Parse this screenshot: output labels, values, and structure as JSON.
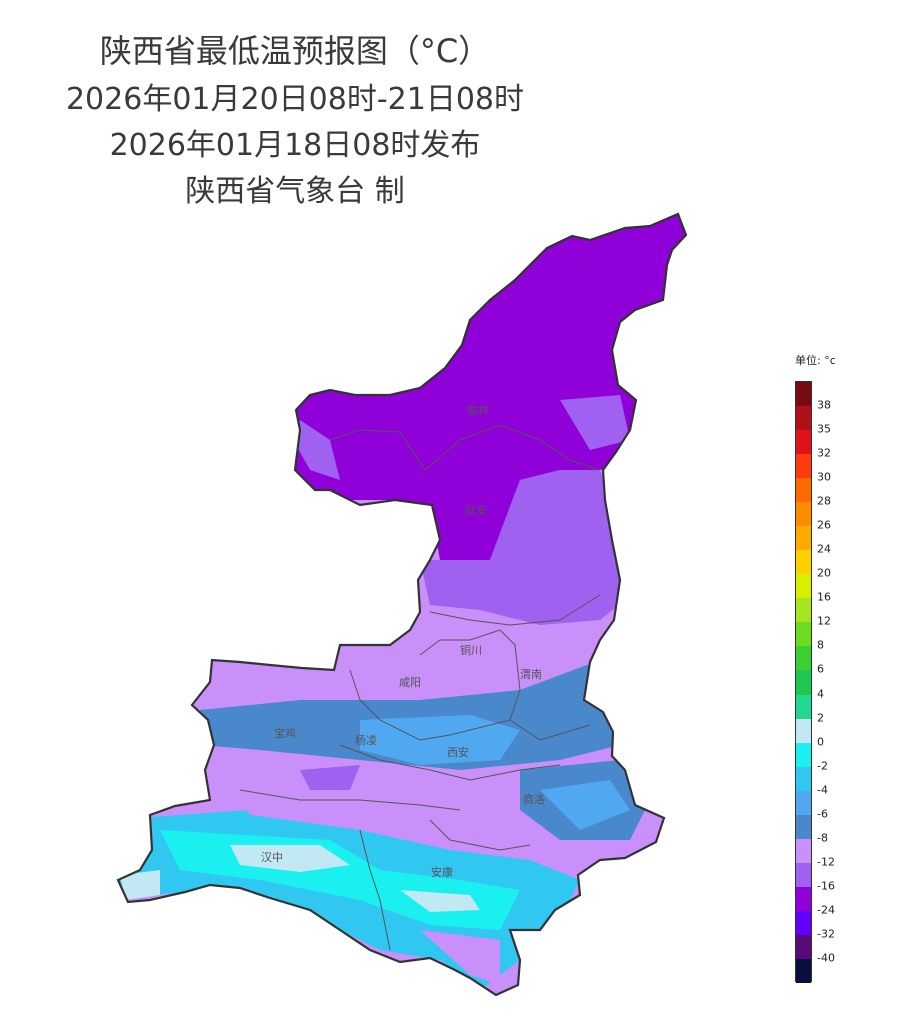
{
  "header": {
    "title": "陕西省最低温预报图（°C）",
    "period": "2026年01月20日08时-21日08时",
    "issued": "2026年01月18日08时发布",
    "issuer": "陕西省气象台 制"
  },
  "map": {
    "region": "陕西省",
    "cities": [
      {
        "id": "yulin",
        "name": "榆林"
      },
      {
        "id": "yanan",
        "name": "延安"
      },
      {
        "id": "tongchuan",
        "name": "铜川"
      },
      {
        "id": "xianyang",
        "name": "咸阳"
      },
      {
        "id": "weinan",
        "name": "渭南"
      },
      {
        "id": "baoji",
        "name": "宝鸡"
      },
      {
        "id": "yangling",
        "name": "杨凌"
      },
      {
        "id": "xian",
        "name": "西安"
      },
      {
        "id": "shangluo",
        "name": "商洛"
      },
      {
        "id": "hanzhong",
        "name": "汉中"
      },
      {
        "id": "ankang",
        "name": "安康"
      }
    ]
  },
  "legend": {
    "unit_label": "单位: °c",
    "levels": [
      {
        "label": "38",
        "color": "#7a0a12"
      },
      {
        "label": "35",
        "color": "#b0101a"
      },
      {
        "label": "32",
        "color": "#e0121a"
      },
      {
        "label": "30",
        "color": "#ff3a10"
      },
      {
        "label": "28",
        "color": "#ff6a00"
      },
      {
        "label": "26",
        "color": "#ff8c00"
      },
      {
        "label": "24",
        "color": "#ffaa00"
      },
      {
        "label": "20",
        "color": "#ffd000"
      },
      {
        "label": "16",
        "color": "#d6f000"
      },
      {
        "label": "12",
        "color": "#a6e620"
      },
      {
        "label": "8",
        "color": "#6cdc20"
      },
      {
        "label": "6",
        "color": "#3ccf30"
      },
      {
        "label": "4",
        "color": "#1ec850"
      },
      {
        "label": "2",
        "color": "#20d890"
      },
      {
        "label": "0",
        "color": "#c2e8f4"
      },
      {
        "label": "-2",
        "color": "#1af0f0"
      },
      {
        "label": "-4",
        "color": "#30c8f0"
      },
      {
        "label": "-6",
        "color": "#50a8f0"
      },
      {
        "label": "-8",
        "color": "#4a88cc"
      },
      {
        "label": "-12",
        "color": "#c890f8"
      },
      {
        "label": "-16",
        "color": "#a060f0"
      },
      {
        "label": "-24",
        "color": "#9000d8"
      },
      {
        "label": "-32",
        "color": "#6000ff"
      },
      {
        "label": "-40",
        "color": "#5a0a78"
      },
      {
        "label": "",
        "color": "#081040"
      }
    ]
  }
}
